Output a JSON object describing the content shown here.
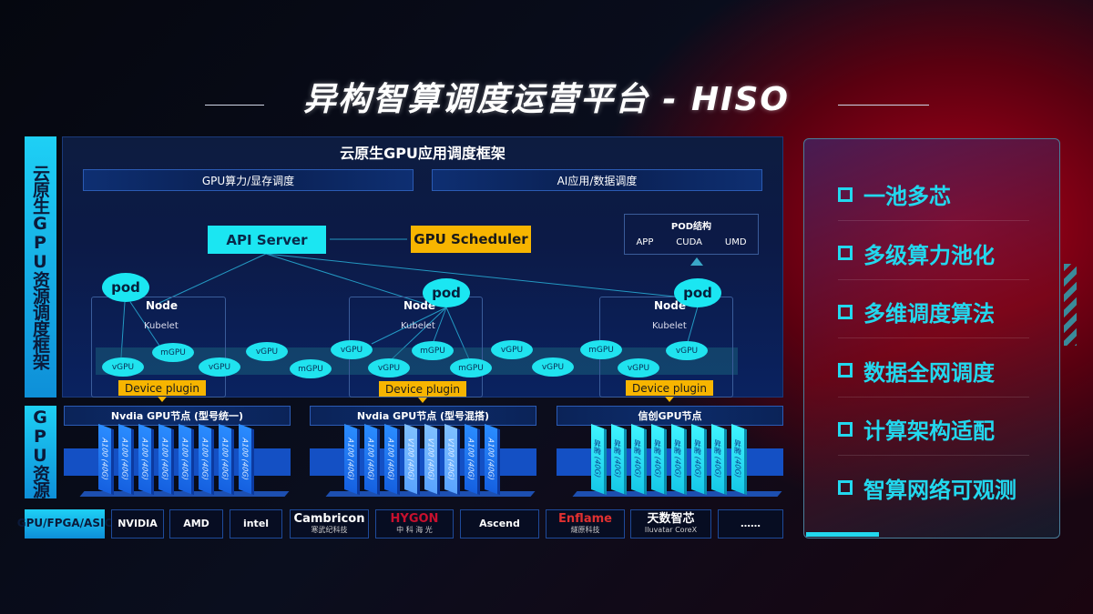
{
  "title": "异构智算调度运营平台 - HISO",
  "left_labels": {
    "framework": "云原生GPU资源调度框架",
    "resources": "GPU资源",
    "chips": "GPU/FPGA/ASIC"
  },
  "framework": {
    "title": "云原生GPU应用调度框架",
    "bars": [
      "GPU算力/显存调度",
      "AI应用/数据调度"
    ],
    "api_server": "API Server",
    "gpu_scheduler": "GPU Scheduler",
    "pod_structure": {
      "title": "POD结构",
      "items": [
        "APP",
        "CUDA",
        "UMD"
      ]
    },
    "pod": "pod",
    "node": "Node",
    "kubelet": "Kubelet",
    "device_plugin": "Device plugin",
    "units": [
      "vGPU",
      "mGPU",
      "vGPU",
      "vGPU",
      "mGPU",
      "vGPU",
      "vGPU",
      "mGPU",
      "mGPU",
      "vGPU",
      "vGPU",
      "mGPU",
      "vGPU",
      "vGPU"
    ]
  },
  "gpu_groups": [
    {
      "title": "Nvdia GPU节点 (型号统一)",
      "cards": [
        "A100 (40G)",
        "A100 (40G)",
        "A100 (40G)",
        "A100 (40G)",
        "A100 (40G)",
        "A100 (40G)",
        "A100 (40G)",
        "A100 (40G)"
      ]
    },
    {
      "title": "Nvdia GPU节点 (型号混搭)",
      "cards": [
        "A100 (40G)",
        "A100 (40G)",
        "A100 (40G)",
        "V100 (40G)",
        "V100 (40G)",
        "V100 (40G)",
        "A100 (40G)",
        "A100 (40G)"
      ]
    },
    {
      "title": "信创GPU节点",
      "cards": [
        "昇腾 (40G)",
        "昇腾 (40G)",
        "昇腾 (40G)",
        "昇腾 (40G)",
        "昇腾 (40G)",
        "昇腾 (40G)",
        "昇腾 (40G)",
        "昇腾 (40G)"
      ]
    }
  ],
  "vendors": [
    {
      "name": "NVIDIA"
    },
    {
      "name": "AMD"
    },
    {
      "name": "intel"
    },
    {
      "name": "Cambricon",
      "sub": "寒武纪科技"
    },
    {
      "name": "HYGON",
      "sub": "中 科 海 光"
    },
    {
      "name": "Ascend"
    },
    {
      "name": "Enflame",
      "sub": "燧原科技"
    },
    {
      "name": "天数智芯",
      "sub": "Iluvatar CoreX"
    },
    {
      "name": "……"
    }
  ],
  "features": [
    "一池多芯",
    "多级算力池化",
    "多维调度算法",
    "数据全网调度",
    "计算架构适配",
    "智算网络可观测"
  ],
  "colors": {
    "cyan": "#1be6f2",
    "orange": "#f7b500",
    "blue": "#1450c4",
    "red": "#b0001a"
  }
}
